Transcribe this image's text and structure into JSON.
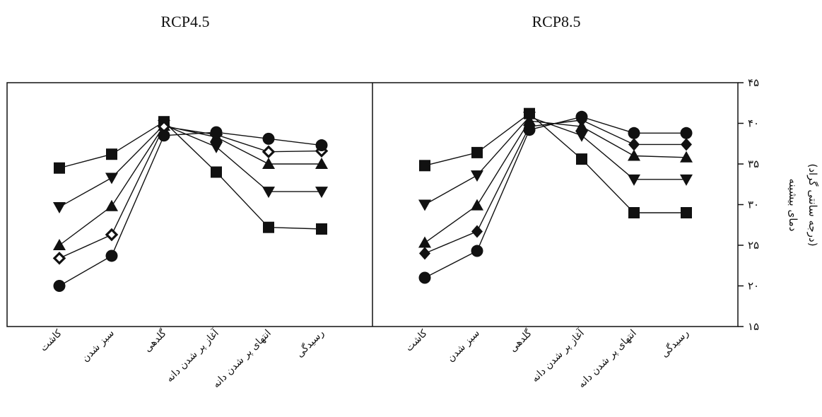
{
  "chart_data": [
    {
      "type": "line",
      "title": "RCP4.5",
      "categories": [
        "کاشت",
        "سبز شدن",
        "گلدهی",
        "آغاز پر شدن دانه",
        "انتهای پر شدن دانه",
        "رسیدگی"
      ],
      "ylim": [
        15,
        45
      ],
      "series": [
        {
          "marker": "square",
          "values": [
            34.5,
            36.2,
            40.2,
            34.0,
            27.2,
            27.0
          ]
        },
        {
          "marker": "triangle-down",
          "values": [
            29.7,
            33.3,
            39.8,
            37.1,
            31.6,
            31.6
          ]
        },
        {
          "marker": "triangle-up",
          "values": [
            25.0,
            29.8,
            39.7,
            38.3,
            35.0,
            35.0
          ]
        },
        {
          "marker": "diamond-open",
          "values": [
            23.4,
            26.3,
            39.6,
            38.6,
            36.5,
            36.6
          ]
        },
        {
          "marker": "circle",
          "values": [
            20.0,
            23.7,
            38.5,
            38.9,
            38.1,
            37.3
          ]
        }
      ]
    },
    {
      "type": "line",
      "title": "RCP8.5",
      "categories": [
        "کاشت",
        "سبز شدن",
        "گلدهی",
        "آغاز پر شدن دانه",
        "انتهای پر شدن دانه",
        "رسیدگی"
      ],
      "ylim": [
        15,
        45
      ],
      "series": [
        {
          "marker": "square",
          "values": [
            34.8,
            36.4,
            41.2,
            35.6,
            29.0,
            29.0
          ]
        },
        {
          "marker": "triangle-down",
          "values": [
            30.0,
            33.6,
            40.8,
            38.5,
            33.1,
            33.1
          ]
        },
        {
          "marker": "triangle-up",
          "values": [
            25.3,
            29.9,
            40.3,
            39.6,
            36.0,
            35.8
          ]
        },
        {
          "marker": "diamond",
          "values": [
            24.0,
            26.7,
            39.6,
            40.4,
            37.4,
            37.4
          ]
        },
        {
          "marker": "circle",
          "values": [
            21.0,
            24.3,
            39.2,
            40.8,
            38.8,
            38.8
          ]
        }
      ]
    }
  ],
  "y_axis": {
    "ticks": [
      "۱۵",
      "۲۰",
      "۲۵",
      "۳۰",
      "۳۵",
      "۴۰",
      "۴۵"
    ],
    "label_line1": "دمای بیشینه",
    "label_line2": "(درجه سانتی گراد)"
  },
  "colors": {
    "line": "#111111",
    "marker": "#111111",
    "axis": "#111111"
  }
}
